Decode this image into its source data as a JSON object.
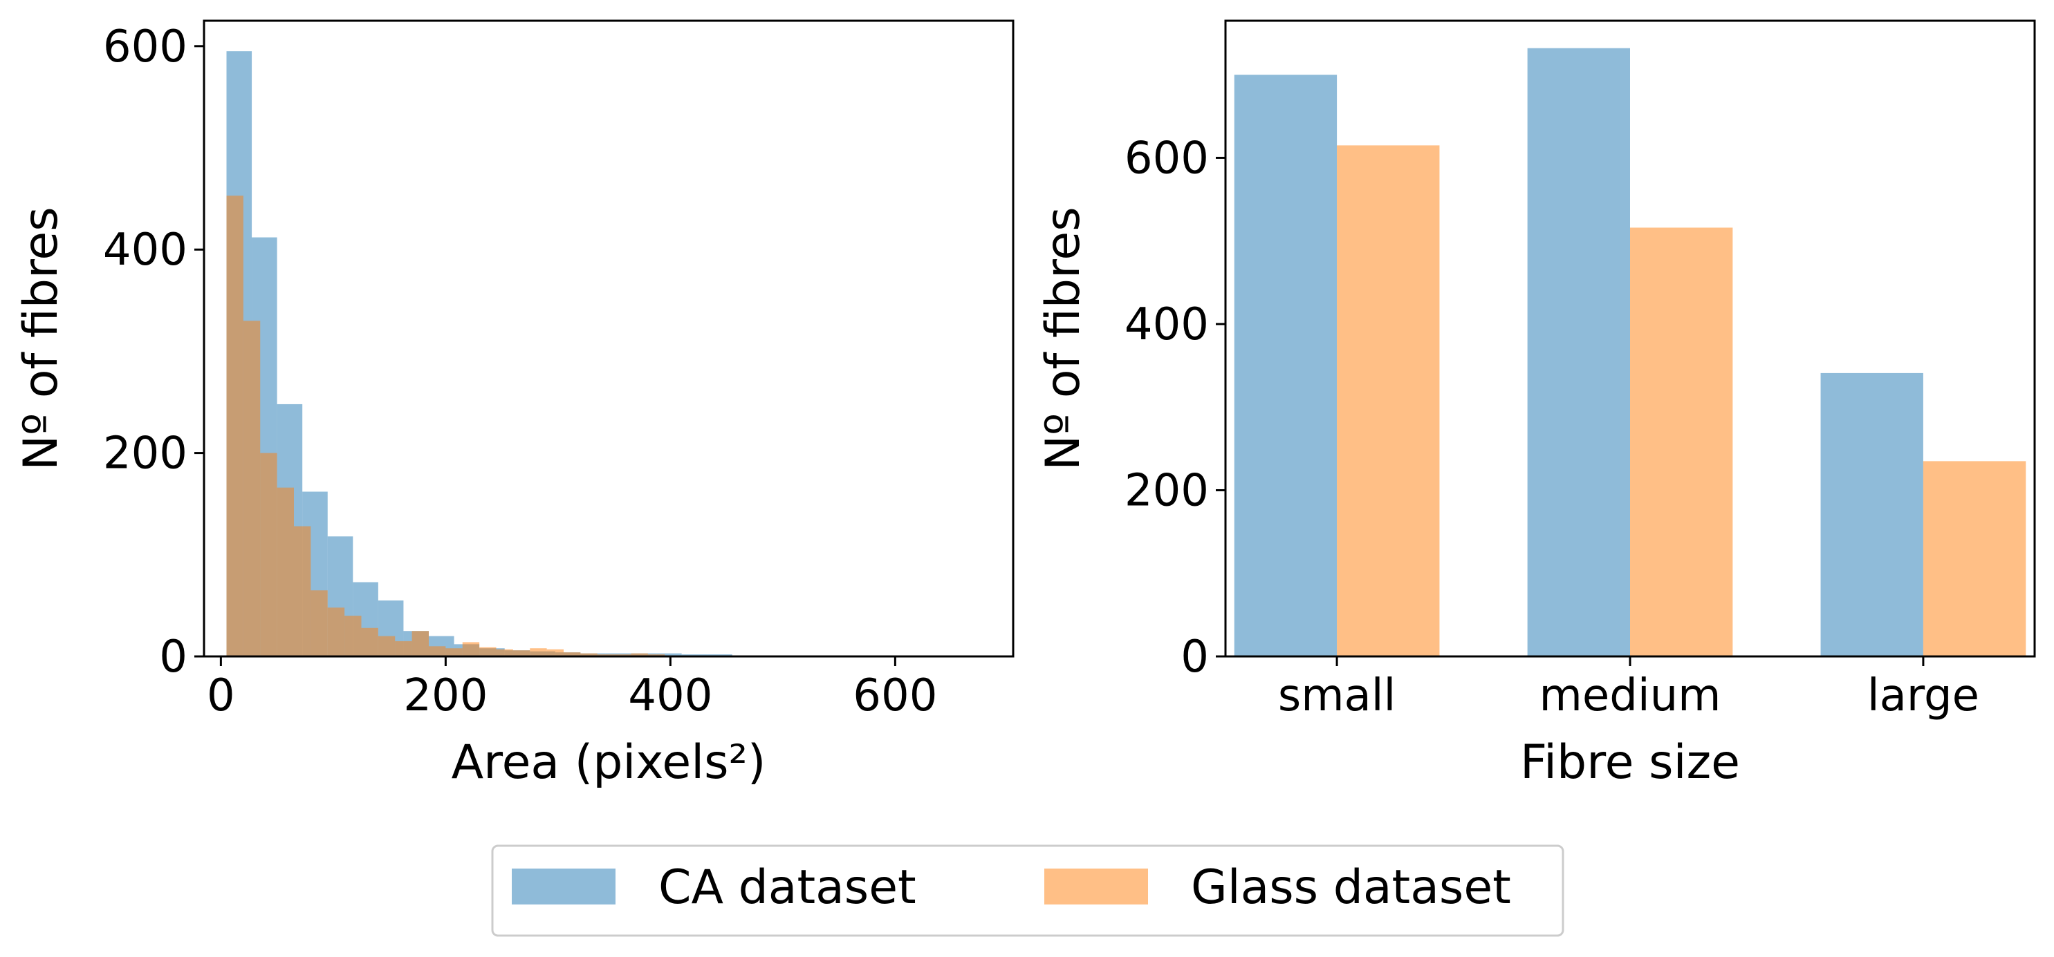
{
  "colors": {
    "ca": "#1f77b4",
    "glass": "#ff7f0e",
    "bar_alpha": 0.5,
    "axis": "#000000",
    "legend_border": "#cccccc"
  },
  "chart_data": [
    {
      "type": "bar",
      "subtype": "histogram",
      "xlabel": "Area (pixels²)",
      "ylabel": "Nº of fibres",
      "xlim": [
        -15,
        705
      ],
      "ylim": [
        0,
        625
      ],
      "xticks": [
        0,
        200,
        400,
        600
      ],
      "yticks": [
        0,
        200,
        400,
        600
      ],
      "grid": false,
      "series": [
        {
          "name": "CA dataset",
          "bin_edges": [
            5,
            27.5,
            50,
            72.5,
            95,
            117.5,
            140,
            162.5,
            185,
            207.5,
            230,
            252.5,
            275,
            297.5,
            320,
            342.5,
            365,
            387.5,
            410,
            432.5,
            455,
            477.5,
            500,
            522.5,
            545,
            567.5,
            590,
            612.5,
            635,
            657.5,
            680
          ],
          "values": [
            595,
            412,
            248,
            162,
            118,
            73,
            55,
            25,
            20,
            12,
            8,
            6,
            5,
            4,
            3,
            3,
            3,
            3,
            2,
            2,
            1,
            1,
            1,
            1,
            1,
            1,
            1,
            1,
            1,
            1
          ]
        },
        {
          "name": "Glass dataset",
          "bin_edges": [
            5,
            20,
            35,
            50,
            65,
            80,
            95,
            110,
            125,
            140,
            155,
            170,
            185,
            200,
            215,
            230,
            245,
            260,
            275,
            290,
            305,
            320,
            335,
            350,
            365,
            380,
            395
          ],
          "values": [
            453,
            330,
            200,
            166,
            128,
            65,
            48,
            40,
            28,
            20,
            15,
            25,
            10,
            8,
            14,
            9,
            7,
            6,
            8,
            7,
            4,
            3,
            2,
            2,
            3,
            2
          ]
        }
      ]
    },
    {
      "type": "bar",
      "categories": [
        "small",
        "medium",
        "large"
      ],
      "xlabel": "Fibre size",
      "ylabel": "Nº of fibres",
      "ylim": [
        0,
        765
      ],
      "yticks": [
        0,
        200,
        400,
        600
      ],
      "grid": false,
      "series": [
        {
          "name": "CA dataset",
          "values": [
            700,
            732,
            341
          ]
        },
        {
          "name": "Glass dataset",
          "values": [
            615,
            516,
            235
          ]
        }
      ]
    }
  ],
  "legend": {
    "placement": "bottom-center",
    "entries": [
      "CA dataset",
      "Glass dataset"
    ]
  }
}
